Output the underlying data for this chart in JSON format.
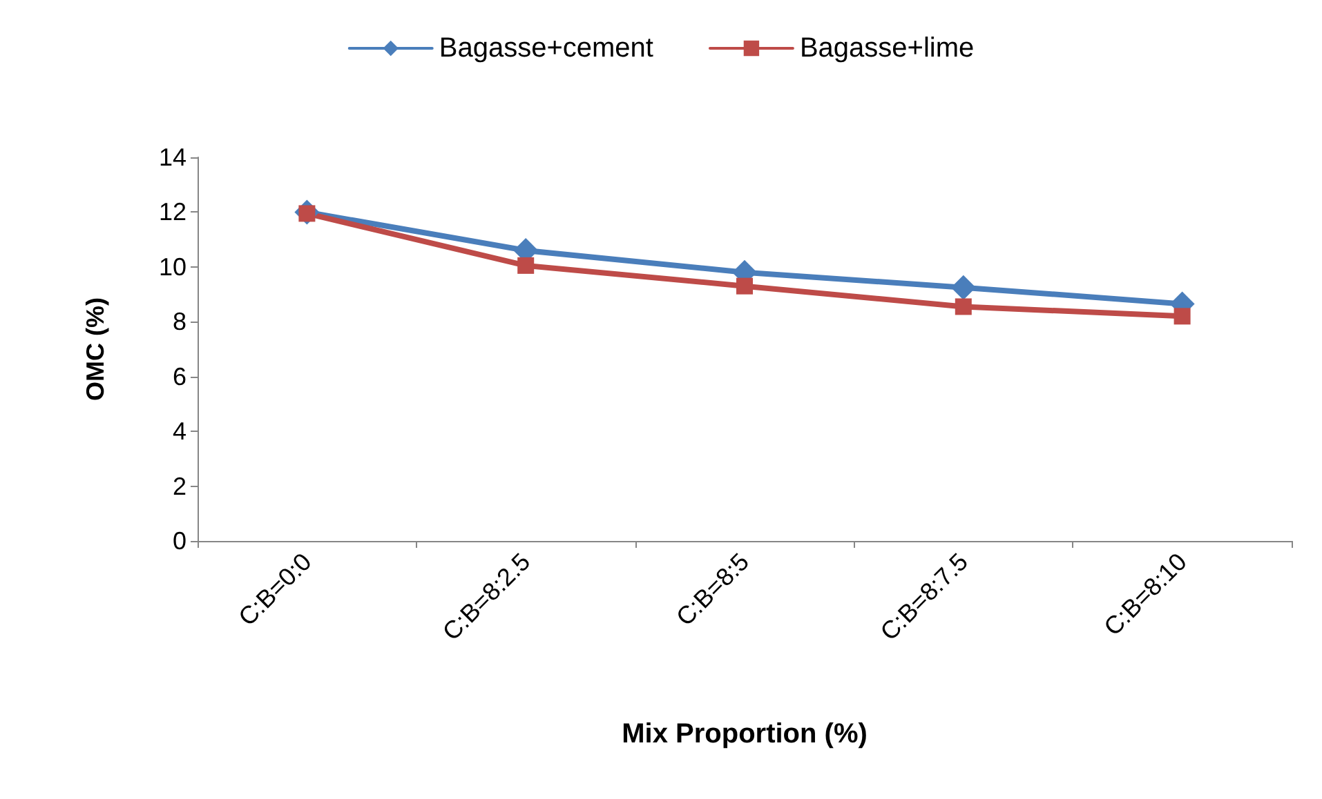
{
  "chart_data": {
    "type": "line",
    "xlabel": "Mix Proportion (%)",
    "ylabel": "OMC (%)",
    "categories": [
      "C:B=0:0",
      "C:B=8:2.5",
      "C:B=8:5",
      "C:B=8:7.5",
      "C:B=8:10"
    ],
    "series": [
      {
        "name": "Bagasse+cement",
        "color": "#4a7ebb",
        "marker": "diamond",
        "values": [
          12.0,
          10.6,
          9.8,
          9.25,
          8.65
        ]
      },
      {
        "name": "Bagasse+lime",
        "color": "#be4b48",
        "marker": "square",
        "values": [
          11.95,
          10.05,
          9.3,
          8.55,
          8.2
        ]
      }
    ],
    "ylim": [
      0,
      14
    ],
    "yticks": [
      0,
      2,
      4,
      6,
      8,
      10,
      12,
      14
    ],
    "grid": false,
    "legend": "top"
  }
}
